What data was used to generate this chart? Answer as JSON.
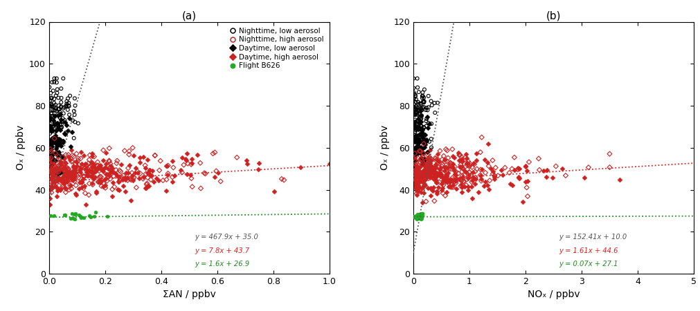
{
  "panel_a": {
    "title": "(a)",
    "xlabel": "ΣAN / ppbv",
    "ylabel": "Oₓ / ppbv",
    "xlim": [
      0.0,
      1.0
    ],
    "ylim": [
      0,
      120
    ],
    "xticks": [
      0.0,
      0.2,
      0.4,
      0.6,
      0.8,
      1.0
    ],
    "yticks": [
      0,
      20,
      40,
      60,
      80,
      100,
      120
    ],
    "fit_black": {
      "slope": 467.9,
      "intercept": 35.0,
      "label": "y = 467.9x + 35.0",
      "color": "#555555",
      "xrange": [
        0.0,
        0.182
      ]
    },
    "fit_red": {
      "slope": 7.8,
      "intercept": 43.7,
      "label": "y = 7.8x + 43.7",
      "color": "#dd2222",
      "xrange": [
        0.0,
        1.0
      ]
    },
    "fit_green": {
      "slope": 1.6,
      "intercept": 26.9,
      "label": "y = 1.6x + 26.9",
      "color": "#228822",
      "xrange": [
        0.0,
        1.0
      ]
    }
  },
  "panel_b": {
    "title": "(b)",
    "xlabel": "NOₓ / ppbv",
    "ylabel": "Oₓ / ppbv",
    "xlim": [
      0.0,
      5.0
    ],
    "ylim": [
      0,
      120
    ],
    "xticks": [
      0,
      1,
      2,
      3,
      4,
      5
    ],
    "yticks": [
      0,
      20,
      40,
      60,
      80,
      100,
      120
    ],
    "fit_black": {
      "slope": 152.41,
      "intercept": 10.0,
      "label": "y = 152.41x + 10.0",
      "color": "#555555",
      "xrange": [
        0.0,
        0.722
      ]
    },
    "fit_red": {
      "slope": 1.61,
      "intercept": 44.6,
      "label": "y = 1.61x + 44.6",
      "color": "#dd2222",
      "xrange": [
        0.0,
        5.0
      ]
    },
    "fit_green": {
      "slope": 0.07,
      "intercept": 27.1,
      "label": "y = 0.07x + 27.1",
      "color": "#228822",
      "xrange": [
        0.0,
        5.0
      ]
    }
  },
  "legend_entries": [
    {
      "label": "Nighttime, low aerosol",
      "facecolor": "none",
      "edgecolor": "#000000",
      "marker": "o",
      "lw": 0.8
    },
    {
      "label": "Nighttime, high aerosol",
      "facecolor": "none",
      "edgecolor": "#cc2222",
      "marker": "o",
      "lw": 0.8
    },
    {
      "label": "Daytime, low aerosol",
      "facecolor": "#000000",
      "edgecolor": "#000000",
      "marker": "D",
      "lw": 0.4
    },
    {
      "label": "Daytime, high aerosol",
      "facecolor": "#cc2222",
      "edgecolor": "#cc2222",
      "marker": "D",
      "lw": 0.4
    },
    {
      "label": "Flight B626",
      "facecolor": "#22aa22",
      "edgecolor": "#22aa22",
      "marker": "o",
      "lw": 0.4
    }
  ],
  "seed": 42
}
